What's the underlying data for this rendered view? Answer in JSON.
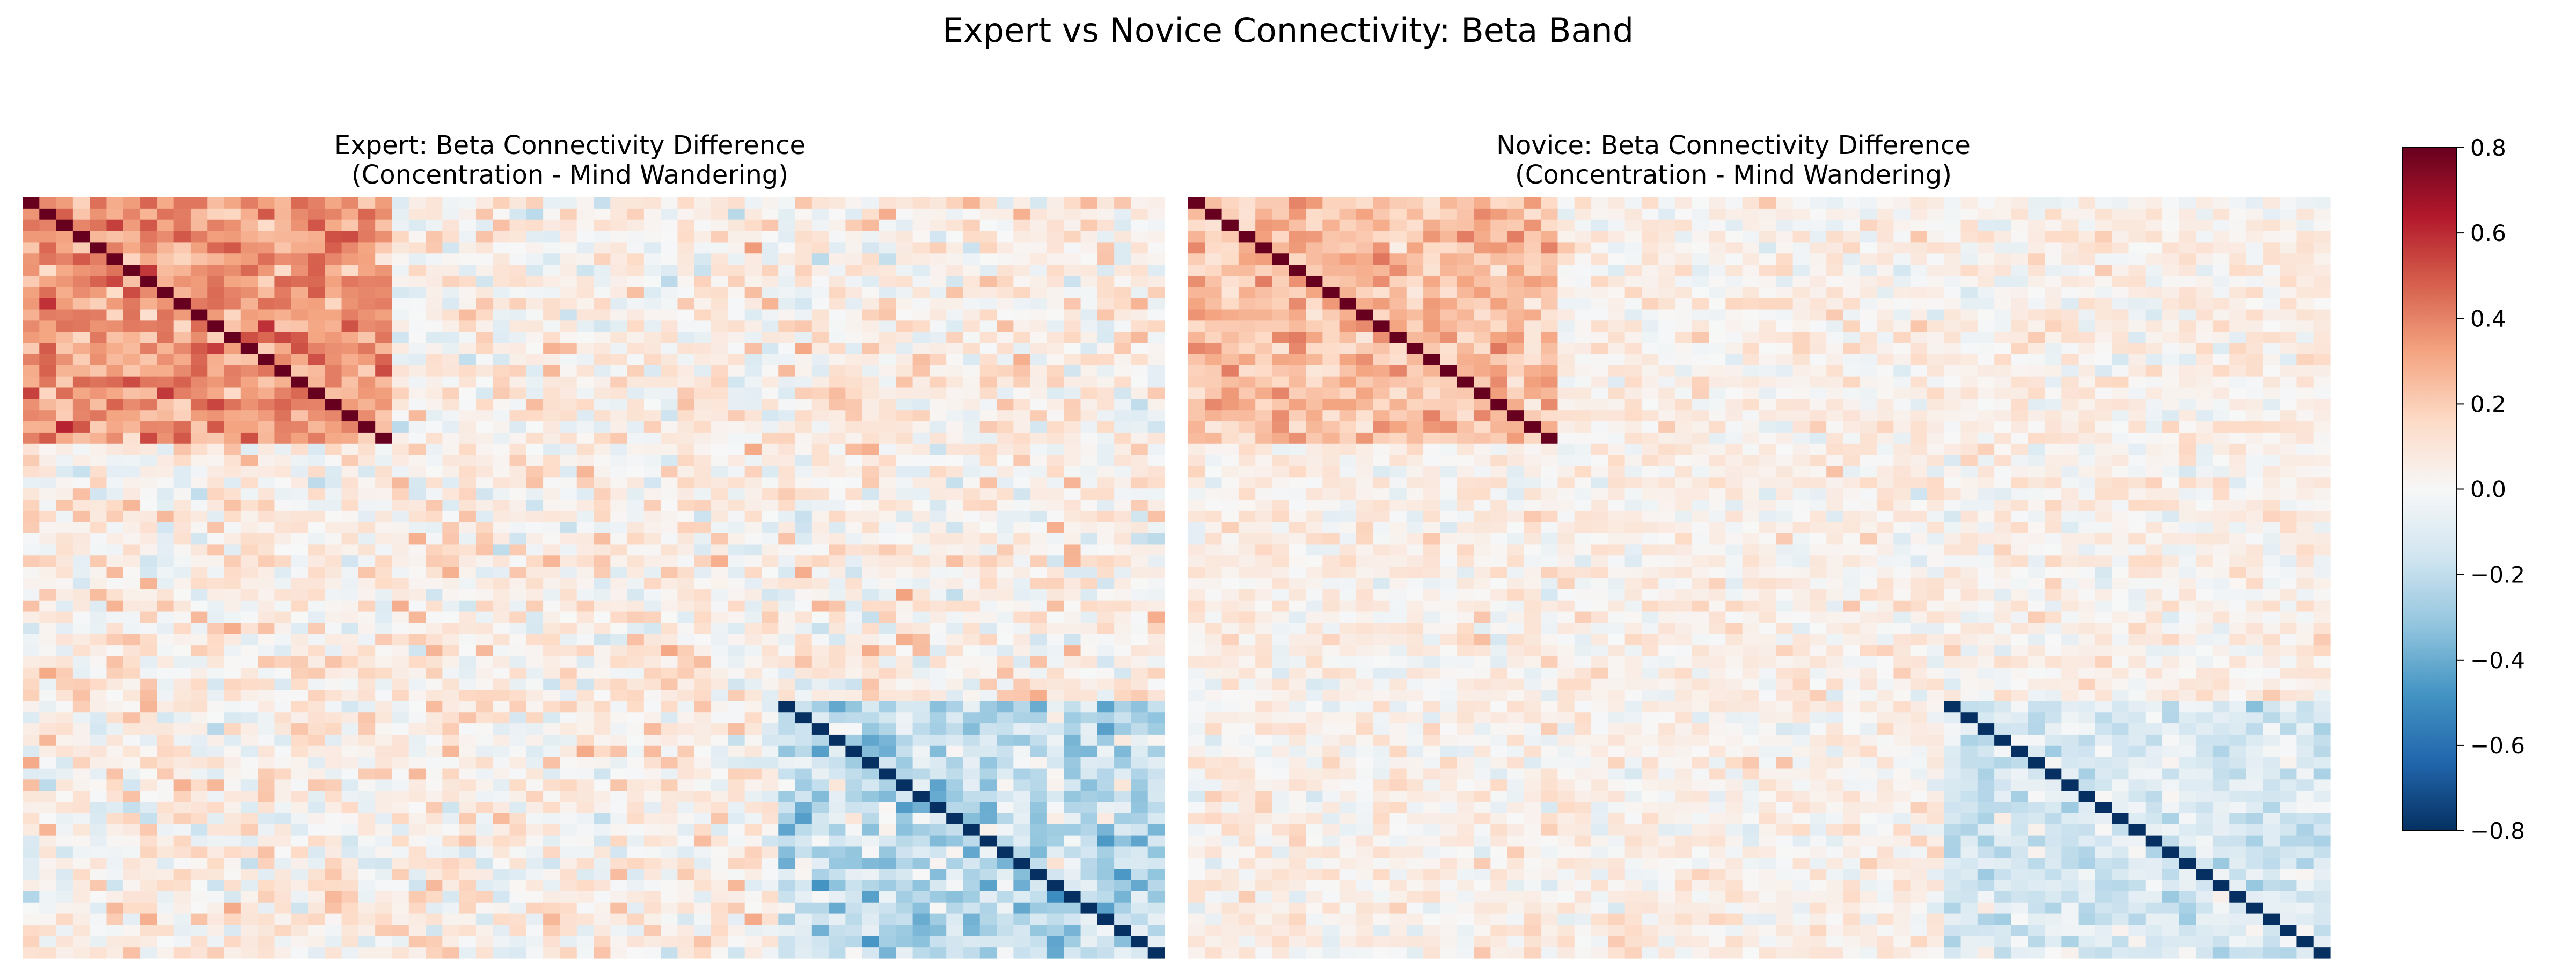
{
  "figure": {
    "title": "Expert vs Novice Connectivity: Beta Band"
  },
  "colorbar": {
    "colormap": "RdBu_r",
    "range": [
      -0.8,
      0.8
    ],
    "ticks": [
      "0.8",
      "0.6",
      "0.4",
      "0.2",
      "0.0",
      "−0.2",
      "−0.4",
      "−0.6",
      "−0.8"
    ],
    "tick_values": [
      0.8,
      0.6,
      0.4,
      0.2,
      0.0,
      -0.2,
      -0.4,
      -0.6,
      -0.8
    ]
  },
  "chart_data": [
    {
      "type": "heatmap",
      "title_line1": "Expert: Beta Connectivity Difference",
      "title_line2": "(Concentration - Mind Wandering)",
      "n": 68,
      "vmin": -0.8,
      "vmax": 0.8,
      "diagonal_blocks": [
        {
          "start": 0,
          "end": 21,
          "value": 0.8
        },
        {
          "start": 45,
          "end": 67,
          "value": -0.8
        }
      ],
      "block_means": [
        {
          "rows": [
            0,
            21
          ],
          "cols": [
            0,
            21
          ],
          "mean": 0.35,
          "spread": 0.1
        },
        {
          "rows": [
            45,
            67
          ],
          "cols": [
            45,
            67
          ],
          "mean": -0.2,
          "spread": 0.12
        },
        {
          "rows": "other",
          "cols": "other",
          "mean": 0.05,
          "spread": 0.1
        }
      ]
    },
    {
      "type": "heatmap",
      "title_line1": "Novice: Beta Connectivity Difference",
      "title_line2": "(Concentration - Mind Wandering)",
      "n": 68,
      "vmin": -0.8,
      "vmax": 0.8,
      "diagonal_blocks": [
        {
          "start": 0,
          "end": 21,
          "value": 0.8
        },
        {
          "start": 45,
          "end": 67,
          "value": -0.8
        }
      ],
      "block_means": [
        {
          "rows": [
            0,
            21
          ],
          "cols": [
            0,
            21
          ],
          "mean": 0.25,
          "spread": 0.08
        },
        {
          "rows": [
            45,
            67
          ],
          "cols": [
            45,
            67
          ],
          "mean": -0.12,
          "spread": 0.08
        },
        {
          "rows": "other",
          "cols": "other",
          "mean": 0.04,
          "spread": 0.07
        }
      ]
    }
  ]
}
